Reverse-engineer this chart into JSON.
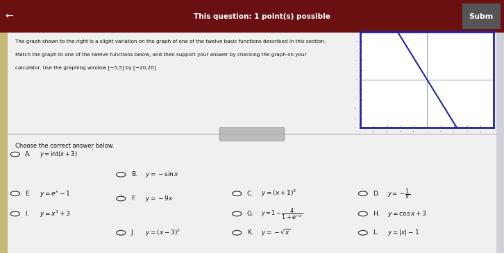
{
  "title_text": "This question: 1 point(s) possible",
  "subm_text": "Subm",
  "problem_line1": "The graph shown to the right is a slight variation on the graph of one of the twelve basic functions described in this section.",
  "problem_line2": "Match the graph to one of the twelve functions below, and then support your answer by checking the graph on your",
  "problem_line3": "calculator. Use the graphing window [−5,5] by [−20,20]",
  "choose_text": "Choose the correct answer below.",
  "bg_color": "#d0d0d8",
  "content_bg": "#f0f0f0",
  "white_panel_bg": "#ffffff",
  "graph_xlim": [
    -5,
    5
  ],
  "graph_ylim": [
    -20,
    20
  ],
  "line_color": "#2222aa",
  "graph_border_color": "#2222aa",
  "axis_color": "#888888",
  "tick_color": "#888888",
  "text_color": "#111111",
  "header_bg": "#6b1010",
  "header_text_color": "#ffffff",
  "divider_color": "#aaaaaa",
  "radio_color": "#333333",
  "subm_bg": "#555555"
}
